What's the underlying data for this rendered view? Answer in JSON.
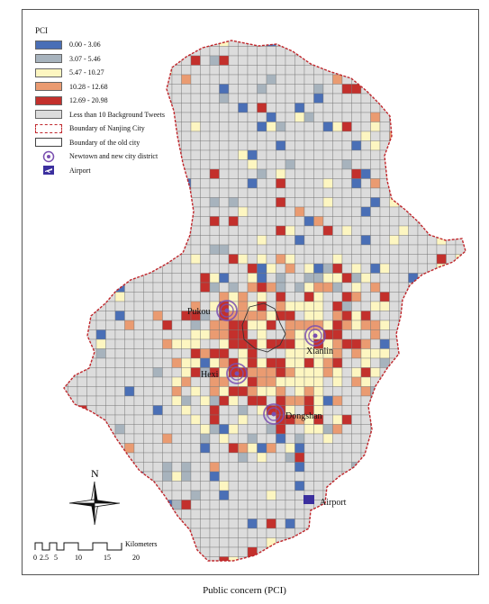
{
  "legend": {
    "title": "PCI",
    "classes": [
      {
        "label": "0.00 - 3.06",
        "color": "#4a6fb6"
      },
      {
        "label": "3.07 - 5.46",
        "color": "#a7b3bd"
      },
      {
        "label": "5.47 - 10.27",
        "color": "#fdf6c1"
      },
      {
        "label": "10.28 - 12.68",
        "color": "#ea9b71"
      },
      {
        "label": "12.69 - 20.98",
        "color": "#c3302c"
      }
    ],
    "background": {
      "label": "Less than 10 Background Tweets",
      "color": "#dcdcdc"
    },
    "city_boundary": {
      "label": "Boundary of Nanjing City",
      "color": "#c0262b"
    },
    "old_city": {
      "label": "Boundary of the old city"
    },
    "newtown": {
      "label": "Newtown and new city district",
      "color": "#7a4fb0"
    },
    "airport": {
      "label": "Airport",
      "color": "#3b2f9e",
      "icon": "airplane-icon"
    }
  },
  "places": [
    {
      "name": "Pukou"
    },
    {
      "name": "Xianlin"
    },
    {
      "name": "Hexi"
    },
    {
      "name": "Dongshan"
    },
    {
      "name": "Airport"
    }
  ],
  "north_label": "N",
  "scale": {
    "ticks": [
      "0",
      "2.5",
      "5",
      "10",
      "15",
      "20"
    ],
    "unit": "Kilometers"
  },
  "caption": "Public concern (PCI)"
}
